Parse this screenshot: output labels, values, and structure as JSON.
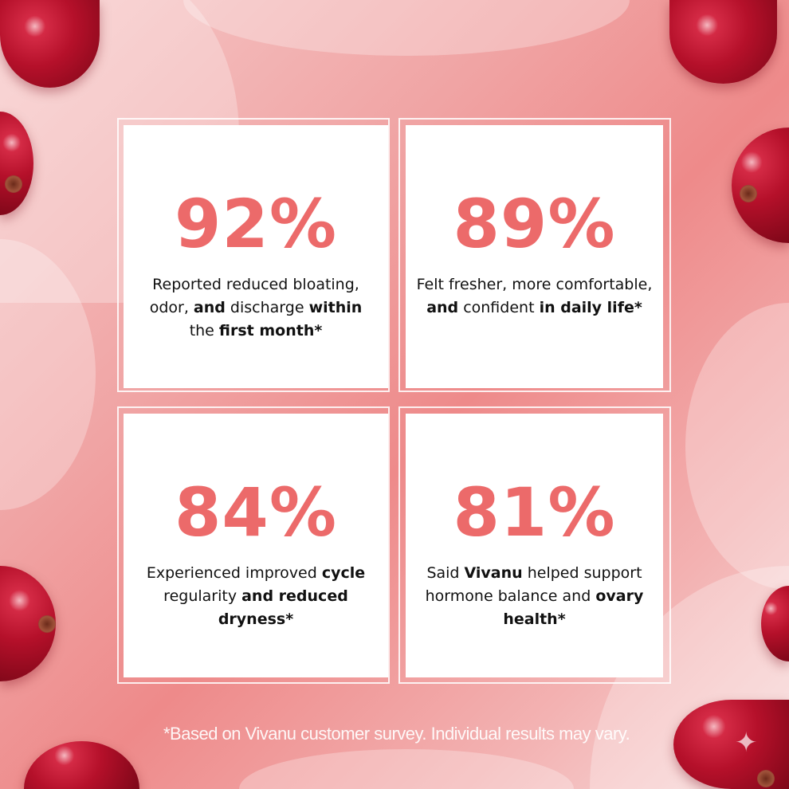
{
  "theme": {
    "accent": "#ec6a6a",
    "text": "#111111"
  },
  "stats": [
    {
      "value": "92%",
      "segments": [
        {
          "t": "Reported reduced bloating, odor, ",
          "b": false
        },
        {
          "t": "and",
          "b": true
        },
        {
          "t": " discharge ",
          "b": false
        },
        {
          "t": "within",
          "b": true
        },
        {
          "t": " the ",
          "b": false
        },
        {
          "t": "first month*",
          "b": true
        }
      ]
    },
    {
      "value": "89%",
      "segments": [
        {
          "t": "Felt fresher, more comfortable, ",
          "b": false
        },
        {
          "t": "and",
          "b": true
        },
        {
          "t": " confident ",
          "b": false
        },
        {
          "t": "in daily life*",
          "b": true
        }
      ]
    },
    {
      "value": "84%",
      "segments": [
        {
          "t": "Experienced improved ",
          "b": false
        },
        {
          "t": "cycle",
          "b": true
        },
        {
          "t": " regularity ",
          "b": false
        },
        {
          "t": "and reduced dryness*",
          "b": true
        }
      ]
    },
    {
      "value": "81%",
      "segments": [
        {
          "t": "Said ",
          "b": false
        },
        {
          "t": "Vivanu",
          "b": true
        },
        {
          "t": " helped support hormone balance and ",
          "b": false
        },
        {
          "t": "ovary",
          "b": true
        },
        {
          "t": " health*",
          "b": true
        }
      ]
    }
  ],
  "footer": "*Based on Vivanu customer survey. Individual results may vary.",
  "watermark_icon": "sparkle-icon"
}
